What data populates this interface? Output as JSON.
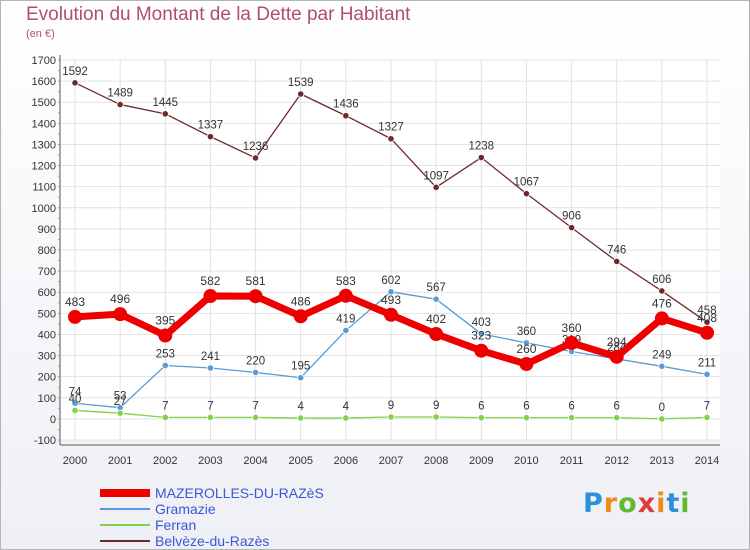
{
  "header": {
    "title": "Evolution du Montant de la Dette par Habitant",
    "subtitle": "(en €)"
  },
  "logo": {
    "text": "Proxiti"
  },
  "chart_data": {
    "type": "line",
    "title": "Evolution du Montant de la Dette par Habitant",
    "subtitle": "(en €)",
    "x": [
      2000,
      2001,
      2002,
      2003,
      2004,
      2005,
      2006,
      2007,
      2008,
      2009,
      2010,
      2011,
      2012,
      2013,
      2014
    ],
    "ylim": [
      -100,
      1700
    ],
    "yticks": [
      -100,
      0,
      100,
      200,
      300,
      400,
      500,
      600,
      700,
      800,
      900,
      1000,
      1100,
      1200,
      1300,
      1400,
      1500,
      1600,
      1700
    ],
    "grid": true,
    "legend_position": "bottom-left",
    "series": [
      {
        "name": "MAZEROLLES-DU-RAZèS",
        "color": "#ee0000",
        "values": [
          483,
          496,
          395,
          582,
          581,
          486,
          583,
          493,
          402,
          323,
          260,
          360,
          294,
          476,
          408
        ]
      },
      {
        "name": "Gramazie",
        "color": "#5b9bd5",
        "values": [
          74,
          53,
          253,
          241,
          220,
          195,
          419,
          602,
          567,
          403,
          360,
          319,
          284,
          249,
          211
        ]
      },
      {
        "name": "Ferran",
        "color": "#7fd24a",
        "values": [
          40,
          27,
          7,
          7,
          7,
          4,
          4,
          9,
          9,
          6,
          6,
          6,
          6,
          0,
          7
        ]
      },
      {
        "name": "Belvèze-du-Razès",
        "color": "#6e2a2a",
        "values": [
          1592,
          1489,
          1445,
          1337,
          1236,
          1539,
          1436,
          1327,
          1097,
          1238,
          1067,
          906,
          746,
          606,
          458
        ]
      }
    ]
  }
}
